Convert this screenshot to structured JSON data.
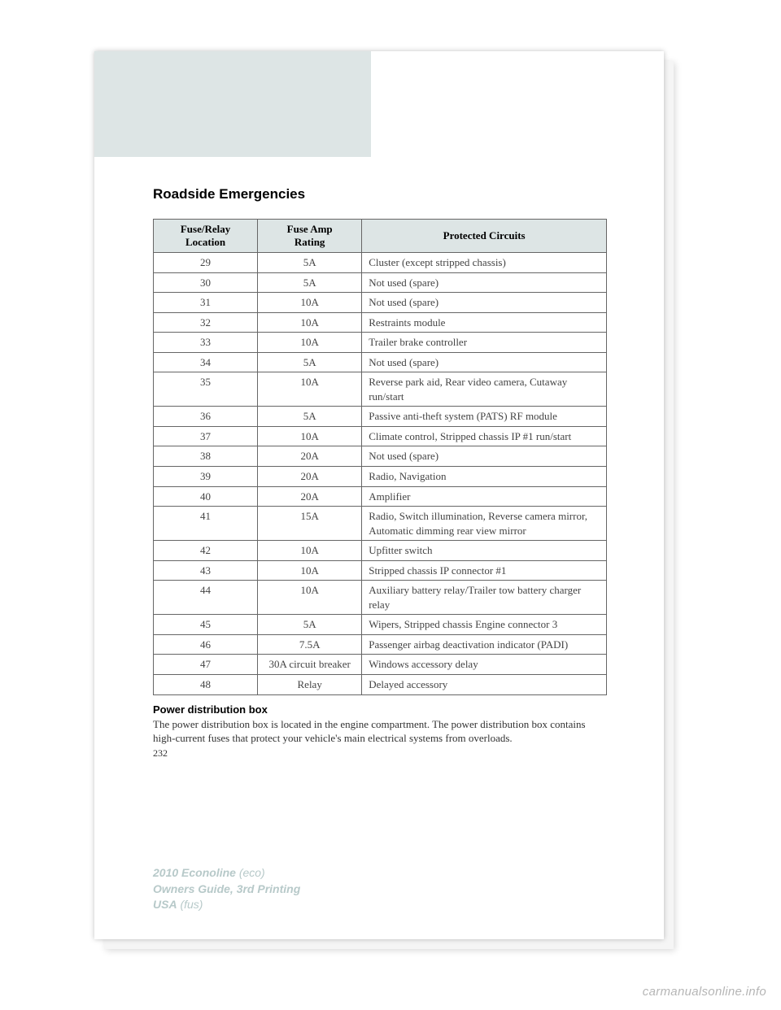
{
  "page": {
    "section_title": "Roadside Emergencies",
    "page_number": "232"
  },
  "table": {
    "headers": {
      "col1_line1": "Fuse/Relay",
      "col1_line2": "Location",
      "col2_line1": "Fuse Amp",
      "col2_line2": "Rating",
      "col3": "Protected Circuits"
    },
    "rows": [
      {
        "loc": "29",
        "amp": "5A",
        "circ": "Cluster (except stripped chassis)"
      },
      {
        "loc": "30",
        "amp": "5A",
        "circ": "Not used (spare)"
      },
      {
        "loc": "31",
        "amp": "10A",
        "circ": "Not used (spare)"
      },
      {
        "loc": "32",
        "amp": "10A",
        "circ": "Restraints module"
      },
      {
        "loc": "33",
        "amp": "10A",
        "circ": "Trailer brake controller"
      },
      {
        "loc": "34",
        "amp": "5A",
        "circ": "Not used (spare)"
      },
      {
        "loc": "35",
        "amp": "10A",
        "circ": "Reverse park aid, Rear video camera, Cutaway run/start"
      },
      {
        "loc": "36",
        "amp": "5A",
        "circ": "Passive anti-theft system (PATS) RF module"
      },
      {
        "loc": "37",
        "amp": "10A",
        "circ": "Climate control, Stripped chassis IP #1 run/start"
      },
      {
        "loc": "38",
        "amp": "20A",
        "circ": "Not used (spare)"
      },
      {
        "loc": "39",
        "amp": "20A",
        "circ": "Radio, Navigation"
      },
      {
        "loc": "40",
        "amp": "20A",
        "circ": "Amplifier"
      },
      {
        "loc": "41",
        "amp": "15A",
        "circ": "Radio, Switch illumination, Reverse camera mirror, Automatic dimming rear view mirror"
      },
      {
        "loc": "42",
        "amp": "10A",
        "circ": "Upfitter switch"
      },
      {
        "loc": "43",
        "amp": "10A",
        "circ": "Stripped chassis IP connector #1"
      },
      {
        "loc": "44",
        "amp": "10A",
        "circ": "Auxiliary battery relay/Trailer tow battery charger relay"
      },
      {
        "loc": "45",
        "amp": "5A",
        "circ": "Wipers, Stripped chassis Engine connector 3"
      },
      {
        "loc": "46",
        "amp": "7.5A",
        "circ": "Passenger airbag deactivation indicator (PADI)"
      },
      {
        "loc": "47",
        "amp": "30A circuit breaker",
        "circ": "Windows accessory delay"
      },
      {
        "loc": "48",
        "amp": "Relay",
        "circ": "Delayed accessory"
      }
    ]
  },
  "subsection": {
    "heading": "Power distribution box",
    "body": "The power distribution box is located in the engine compartment. The power distribution box contains high-current fuses that protect your vehicle's main electrical systems from overloads."
  },
  "footer": {
    "line1_bold": "2010 Econoline",
    "line1_ital": " (eco)",
    "line2": "Owners Guide, 3rd Printing",
    "line3_bold": "USA",
    "line3_ital": " (fus)"
  },
  "watermark": "carmanualsonline.info",
  "style": {
    "page_bg": "#ffffff",
    "header_block_bg": "#dde5e5",
    "table_header_bg": "#dde5e5",
    "border_color": "#666666",
    "text_color": "#333333",
    "footer_color": "#b7c9c9"
  }
}
